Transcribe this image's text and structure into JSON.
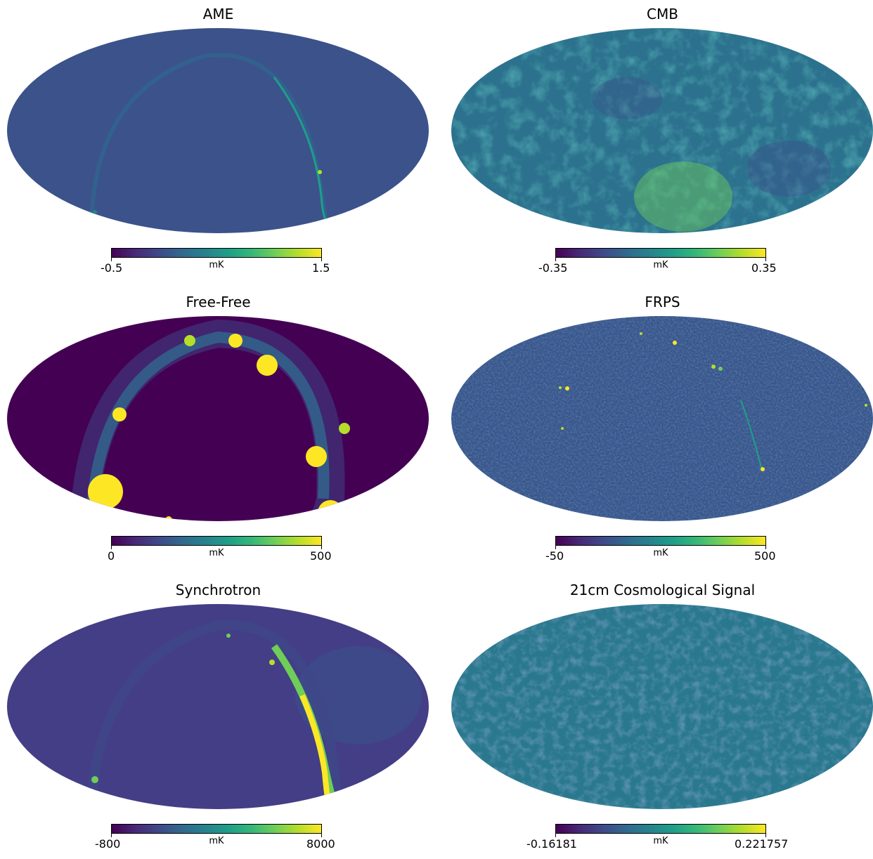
{
  "colormap": [
    "#440154",
    "#482878",
    "#3e4989",
    "#31688e",
    "#26828e",
    "#1f9e89",
    "#35b779",
    "#6ece58",
    "#b5de2b",
    "#fde725"
  ],
  "panels": [
    {
      "title": "AME",
      "unit": "mK",
      "min": "-0.5",
      "max": "1.5",
      "base_color": "#3b528b",
      "pattern": "arc"
    },
    {
      "title": "CMB",
      "unit": "mK",
      "min": "-0.35",
      "max": "0.35",
      "base_color": "#21918c",
      "pattern": "noise"
    },
    {
      "title": "Free-Free",
      "unit": "mK",
      "min": "0",
      "max": "500",
      "base_color": "#440154",
      "pattern": "ring"
    },
    {
      "title": "FRPS",
      "unit": "mK",
      "min": "-50",
      "max": "500",
      "base_color": "#39558c",
      "pattern": "points"
    },
    {
      "title": "Synchrotron",
      "unit": "mK",
      "min": "-800",
      "max": "8000",
      "base_color": "#433e85",
      "pattern": "synch"
    },
    {
      "title": "21cm Cosmological Signal",
      "unit": "mK",
      "min": "-0.16181",
      "max": "0.221757",
      "base_color": "#2a788e",
      "pattern": "noise"
    }
  ]
}
